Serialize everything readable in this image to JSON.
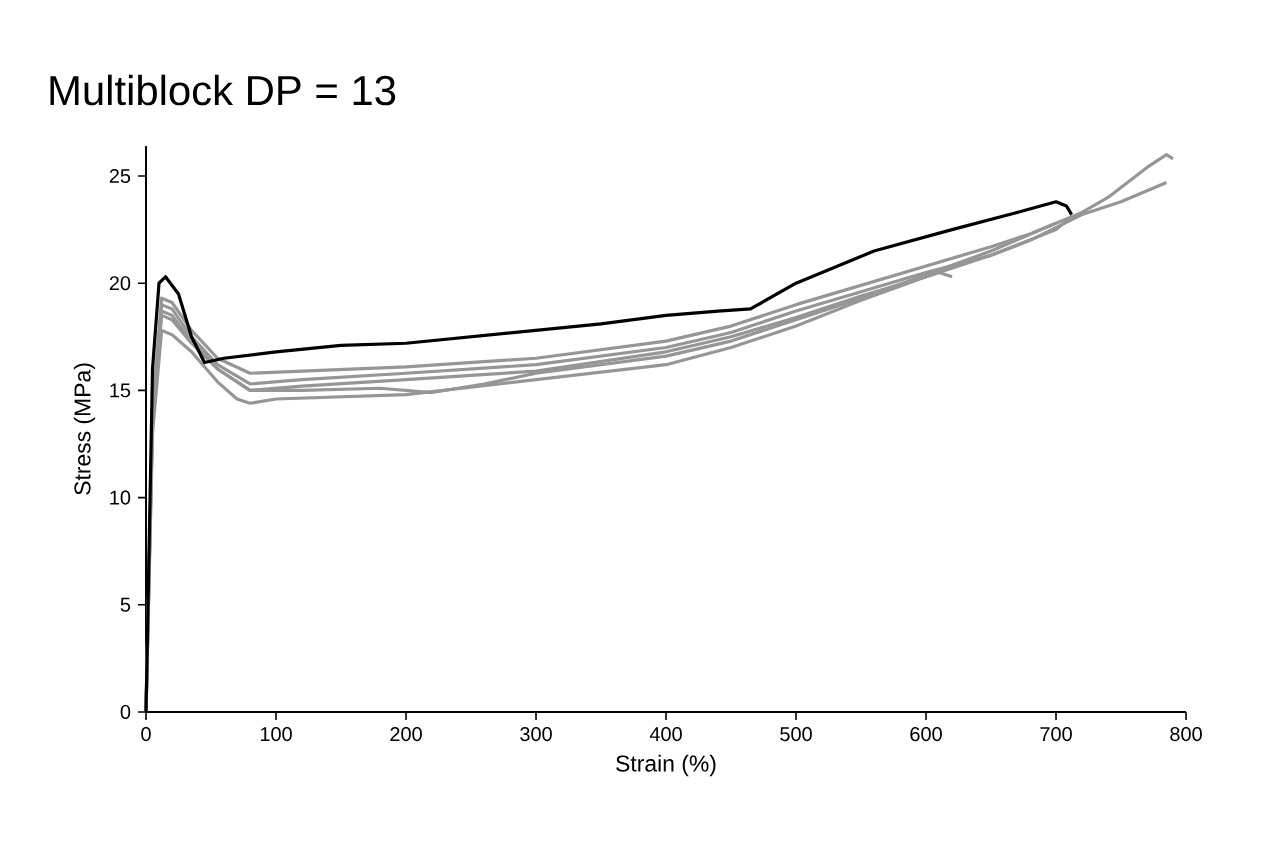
{
  "chart_data": {
    "type": "line",
    "title": "Multiblock DP = 13",
    "xlabel": "Strain (%)",
    "ylabel": "Stress (MPa)",
    "xlim": [
      0,
      800
    ],
    "ylim": [
      0,
      26.4
    ],
    "xticks": [
      0,
      100,
      200,
      300,
      400,
      500,
      600,
      700,
      800
    ],
    "yticks": [
      0,
      5,
      10,
      15,
      20,
      25
    ],
    "series": [
      {
        "color": "#969696",
        "x": [
          0,
          5,
          12,
          20,
          35,
          55,
          80,
          120,
          200,
          300,
          400,
          450,
          500,
          550,
          600,
          650,
          680,
          720,
          740,
          770,
          785,
          790
        ],
        "values": [
          0,
          14,
          19.3,
          19.1,
          17.8,
          16.5,
          15.8,
          15.9,
          16.1,
          16.5,
          17.3,
          18,
          19,
          19.9,
          20.8,
          21.7,
          22.3,
          23.3,
          24,
          25.4,
          26,
          25.8
        ]
      },
      {
        "color": "#969696",
        "x": [
          0,
          5,
          12,
          20,
          35,
          55,
          80,
          120,
          200,
          300,
          400,
          450,
          500,
          550,
          600,
          650,
          680,
          720,
          750,
          785
        ],
        "values": [
          0,
          14,
          19,
          18.8,
          17.5,
          16.2,
          15.3,
          15.5,
          15.8,
          16.2,
          17,
          17.7,
          18.7,
          19.6,
          20.5,
          21.3,
          22,
          23.2,
          23.8,
          24.7
        ]
      },
      {
        "color": "#969696",
        "x": [
          0,
          5,
          12,
          20,
          35,
          55,
          80,
          120,
          200,
          300,
          400,
          450,
          500,
          550,
          600,
          610,
          620
        ],
        "values": [
          0,
          13.5,
          18.5,
          18.3,
          17.2,
          16,
          15,
          15.2,
          15.5,
          15.9,
          16.8,
          17.5,
          18.4,
          19.4,
          20.3,
          20.5,
          20.3
        ]
      },
      {
        "color": "#969696",
        "x": [
          0,
          5,
          12,
          20,
          35,
          55,
          80,
          120,
          180,
          220,
          260,
          300,
          400,
          450,
          500,
          550,
          600,
          650,
          700
        ],
        "values": [
          0,
          13.8,
          18.7,
          18.5,
          17.3,
          16,
          15,
          15,
          15.1,
          14.9,
          15.3,
          15.8,
          16.6,
          17.3,
          18.3,
          19.3,
          20.4,
          21.5,
          22.8
        ]
      },
      {
        "color": "#969696",
        "x": [
          0,
          5,
          12,
          20,
          35,
          55,
          70,
          80,
          100,
          200,
          300,
          400,
          450,
          500,
          550,
          600,
          650,
          700,
          710
        ],
        "values": [
          0,
          13,
          17.8,
          17.6,
          16.8,
          15.4,
          14.6,
          14.4,
          14.6,
          14.8,
          15.5,
          16.2,
          17,
          18,
          19.2,
          20.3,
          21.3,
          22.5,
          23
        ]
      },
      {
        "color": "#000000",
        "x": [
          0,
          5,
          10,
          15,
          25,
          35,
          45,
          60,
          100,
          150,
          200,
          250,
          300,
          350,
          400,
          440,
          465,
          500,
          560,
          620,
          670,
          700,
          708,
          712
        ],
        "values": [
          0,
          16,
          20,
          20.3,
          19.5,
          17.5,
          16.3,
          16.5,
          16.8,
          17.1,
          17.2,
          17.5,
          17.8,
          18.1,
          18.5,
          18.7,
          18.8,
          20,
          21.5,
          22.5,
          23.3,
          23.8,
          23.6,
          23.2
        ]
      }
    ]
  }
}
